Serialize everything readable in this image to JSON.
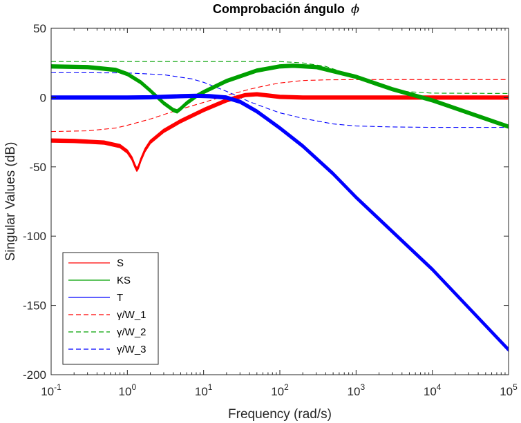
{
  "chart_data": {
    "type": "line",
    "title": "Comprobación ángulo",
    "title_symbol": "ϕ",
    "xlabel": "Frequency (rad/s)",
    "ylabel": "Singular Values (dB)",
    "xscale": "log",
    "xlim": [
      0.1,
      100000
    ],
    "ylim": [
      -200,
      50
    ],
    "x_ticks": [
      {
        "value": 0.1,
        "base": "10",
        "exp": "-1"
      },
      {
        "value": 1,
        "base": "10",
        "exp": "0"
      },
      {
        "value": 10,
        "base": "10",
        "exp": "1"
      },
      {
        "value": 100,
        "base": "10",
        "exp": "2"
      },
      {
        "value": 1000,
        "base": "10",
        "exp": "3"
      },
      {
        "value": 10000,
        "base": "10",
        "exp": "4"
      },
      {
        "value": 100000,
        "base": "10",
        "exp": "5"
      }
    ],
    "y_ticks": [
      {
        "value": 50,
        "label": "50"
      },
      {
        "value": 0,
        "label": "0"
      },
      {
        "value": -50,
        "label": "-50"
      },
      {
        "value": -100,
        "label": "-100"
      },
      {
        "value": -150,
        "label": "-150"
      },
      {
        "value": -200,
        "label": "-200"
      }
    ],
    "grid": false,
    "legend_position": "bottom-left",
    "colors": {
      "red": "#ff0000",
      "green": "#00a000",
      "blue": "#0000ff"
    },
    "series": [
      {
        "name": "S",
        "color": "#ff0000",
        "dash": "solid",
        "bundle": true,
        "width": 1.4,
        "x": [
          0.1,
          0.2,
          0.5,
          0.8,
          1.0,
          1.15,
          1.25,
          1.33,
          1.4,
          1.5,
          1.7,
          2,
          3,
          5,
          10,
          20,
          35,
          50,
          70,
          100,
          200,
          1000,
          10000,
          100000
        ],
        "y": [
          -31,
          -31.3,
          -32.5,
          -35,
          -39,
          -44,
          -49,
          -52,
          -50,
          -45,
          -38,
          -32,
          -24,
          -17,
          -9,
          -2,
          1.8,
          2.4,
          1.5,
          0.5,
          0,
          0,
          0,
          0
        ]
      },
      {
        "name": "KS",
        "color": "#00a000",
        "dash": "solid",
        "bundle": true,
        "width": 1.4,
        "x": [
          0.1,
          0.3,
          0.7,
          1,
          1.5,
          2,
          3,
          4,
          4.5,
          5,
          6,
          8,
          10,
          20,
          50,
          100,
          150,
          300,
          1000,
          3000,
          10000,
          100000
        ],
        "y": [
          22.5,
          22,
          20,
          17,
          11,
          5,
          -4,
          -9,
          -10,
          -8,
          -4,
          1,
          4,
          12,
          19.5,
          22.5,
          23,
          22,
          15,
          6,
          -2,
          -21
        ]
      },
      {
        "name": "T",
        "color": "#0000ff",
        "dash": "solid",
        "bundle": true,
        "width": 1.4,
        "x": [
          0.1,
          0.5,
          1,
          2,
          5,
          8,
          12,
          20,
          30,
          50,
          100,
          200,
          500,
          1000,
          10000,
          100000
        ],
        "y": [
          0,
          0,
          0,
          0.2,
          1,
          1.3,
          1,
          0,
          -3,
          -10,
          -22,
          -35,
          -55,
          -72,
          -124,
          -182
        ]
      },
      {
        "name": "γ/W_1",
        "color": "#ff0000",
        "dash": "dashed",
        "bundle": false,
        "width": 1.1,
        "x": [
          0.1,
          0.3,
          0.7,
          1,
          2,
          4,
          7,
          10,
          20,
          40,
          70,
          100,
          200,
          400,
          1000,
          10000,
          100000
        ],
        "y": [
          -24.5,
          -24,
          -22,
          -20,
          -15.5,
          -10,
          -6,
          -3.5,
          1.5,
          6,
          9,
          10.5,
          12.3,
          12.8,
          13,
          13,
          13
        ]
      },
      {
        "name": "γ/W_2",
        "color": "#00a000",
        "dash": "dashed",
        "bundle": false,
        "width": 1.1,
        "x": [
          0.1,
          10,
          100,
          200,
          400,
          700,
          1000,
          2000,
          4000,
          10000,
          100000
        ],
        "y": [
          26,
          26,
          26,
          25,
          22.5,
          18,
          14,
          8,
          4.5,
          3.2,
          3
        ]
      },
      {
        "name": "γ/W_3",
        "color": "#0000ff",
        "dash": "dashed",
        "bundle": false,
        "width": 1.1,
        "x": [
          0.1,
          1,
          3,
          7,
          10,
          20,
          40,
          70,
          100,
          200,
          500,
          1000,
          3000,
          10000,
          100000
        ],
        "y": [
          18,
          17.8,
          16.5,
          13.5,
          11,
          4.5,
          -3,
          -8,
          -11,
          -15,
          -19,
          -20.5,
          -21.2,
          -21.5,
          -21.5
        ]
      }
    ]
  }
}
